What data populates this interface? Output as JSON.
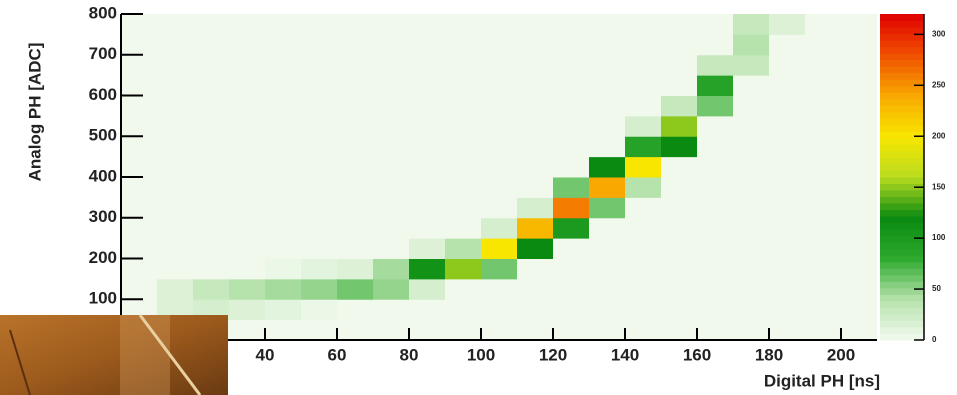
{
  "chart_data": {
    "type": "heatmap",
    "x_label": "Digital PH [ns]",
    "y_label": "Analog PH [ADC]",
    "xlim": [
      0,
      210
    ],
    "xticks": [
      40,
      60,
      80,
      100,
      120,
      140,
      160,
      180,
      200
    ],
    "ylim": [
      0,
      800
    ],
    "yticks": [
      100,
      200,
      300,
      400,
      500,
      600,
      700,
      800
    ],
    "x_bins": [
      0,
      10,
      20,
      30,
      40,
      50,
      60,
      70,
      80,
      90,
      100,
      110,
      120,
      130,
      140,
      150,
      160,
      170,
      180,
      190,
      200,
      210
    ],
    "y_bins": [
      0,
      50,
      100,
      150,
      200,
      250,
      300,
      350,
      400,
      450,
      500,
      550,
      600,
      650,
      700,
      750,
      800
    ],
    "values": [
      [
        1,
        1,
        1,
        1,
        1,
        1,
        1,
        1,
        1,
        1,
        1,
        1,
        1,
        1,
        1,
        1
      ],
      [
        1,
        15,
        15,
        1,
        1,
        1,
        1,
        1,
        1,
        1,
        1,
        1,
        1,
        1,
        1,
        1
      ],
      [
        1,
        20,
        30,
        1,
        1,
        1,
        1,
        1,
        1,
        1,
        1,
        1,
        1,
        1,
        1,
        1
      ],
      [
        1,
        15,
        40,
        1,
        1,
        1,
        1,
        1,
        1,
        1,
        1,
        1,
        1,
        1,
        1,
        1
      ],
      [
        1,
        10,
        45,
        5,
        1,
        1,
        1,
        1,
        1,
        1,
        1,
        1,
        1,
        1,
        1,
        1
      ],
      [
        1,
        5,
        50,
        10,
        1,
        1,
        1,
        1,
        1,
        1,
        1,
        1,
        1,
        1,
        1,
        1
      ],
      [
        1,
        1,
        60,
        15,
        1,
        1,
        1,
        1,
        1,
        1,
        1,
        1,
        1,
        1,
        1,
        1
      ],
      [
        1,
        1,
        50,
        45,
        1,
        1,
        1,
        1,
        1,
        1,
        1,
        1,
        1,
        1,
        1,
        1
      ],
      [
        1,
        1,
        20,
        110,
        15,
        1,
        1,
        1,
        1,
        1,
        1,
        1,
        1,
        1,
        1,
        1
      ],
      [
        1,
        1,
        1,
        150,
        40,
        1,
        1,
        1,
        1,
        1,
        1,
        1,
        1,
        1,
        1,
        1
      ],
      [
        1,
        1,
        1,
        60,
        200,
        20,
        1,
        1,
        1,
        1,
        1,
        1,
        1,
        1,
        1,
        1
      ],
      [
        1,
        1,
        1,
        1,
        120,
        230,
        20,
        1,
        1,
        1,
        1,
        1,
        1,
        1,
        1,
        1
      ],
      [
        1,
        1,
        1,
        1,
        1,
        100,
        260,
        60,
        1,
        1,
        1,
        1,
        1,
        1,
        1,
        1
      ],
      [
        1,
        1,
        1,
        1,
        1,
        1,
        60,
        240,
        120,
        1,
        1,
        1,
        1,
        1,
        1,
        1
      ],
      [
        1,
        1,
        1,
        1,
        1,
        1,
        1,
        40,
        200,
        90,
        20,
        1,
        1,
        1,
        1,
        1
      ],
      [
        1,
        1,
        1,
        1,
        1,
        1,
        1,
        1,
        1,
        120,
        150,
        30,
        1,
        1,
        1,
        1
      ],
      [
        1,
        1,
        1,
        1,
        1,
        1,
        1,
        1,
        1,
        1,
        1,
        60,
        90,
        30,
        1,
        1
      ],
      [
        1,
        1,
        1,
        1,
        1,
        1,
        1,
        1,
        1,
        1,
        1,
        1,
        1,
        30,
        40,
        30
      ],
      [
        1,
        1,
        1,
        1,
        1,
        1,
        1,
        1,
        1,
        1,
        1,
        1,
        1,
        1,
        1,
        15
      ],
      [
        1,
        1,
        1,
        1,
        1,
        1,
        1,
        1,
        1,
        1,
        1,
        1,
        1,
        1,
        1,
        1
      ],
      [
        1,
        1,
        1,
        1,
        1,
        1,
        1,
        1,
        1,
        1,
        1,
        1,
        1,
        1,
        1,
        1
      ]
    ],
    "zlim": [
      0,
      320
    ],
    "zticks": [
      0,
      50,
      100,
      150,
      200,
      250,
      300
    ],
    "colorscale": [
      "#f2faef",
      "#b6e2ac",
      "#2eaa2e",
      "#0a8a10",
      "#b8dc20",
      "#f8e600",
      "#f8a800",
      "#f05000",
      "#e00000"
    ]
  }
}
